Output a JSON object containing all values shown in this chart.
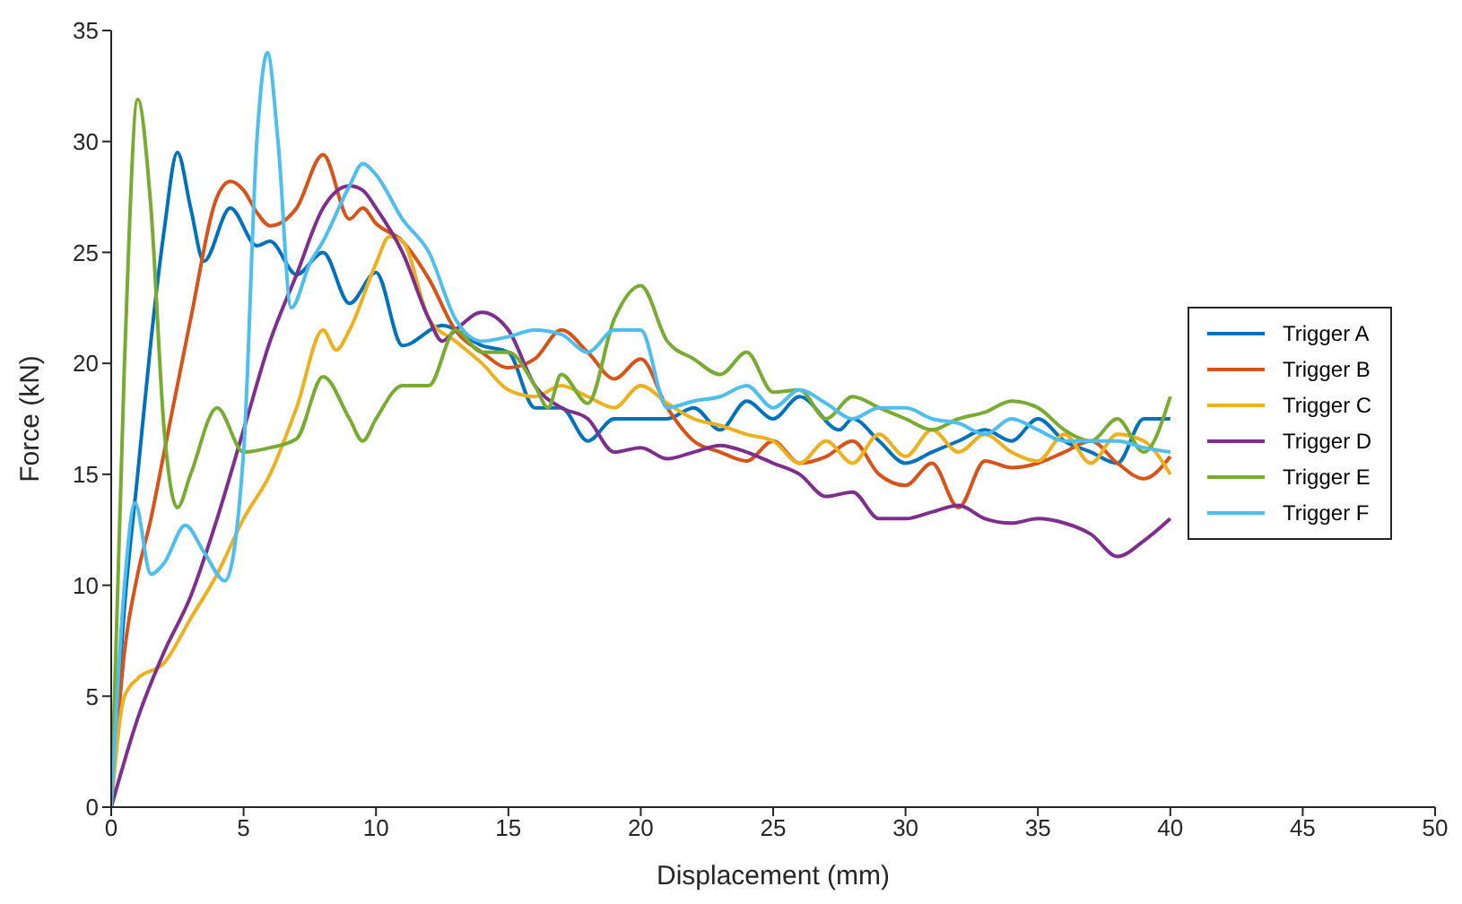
{
  "chart_data": {
    "type": "line",
    "xlabel": "Displacement (mm)",
    "ylabel": "Force (kN)",
    "xlim": [
      0,
      50
    ],
    "xticks": [
      0,
      5,
      10,
      15,
      20,
      25,
      30,
      35,
      40,
      45,
      50
    ],
    "ylim": [
      0,
      35
    ],
    "yticks": [
      0,
      5,
      10,
      15,
      20,
      25,
      30,
      35
    ],
    "grid": false,
    "legend": "right",
    "marker": "none",
    "line_style": "solid",
    "series": [
      {
        "name": "Trigger A",
        "color": "#0072bd",
        "x": [
          0,
          0.5,
          1,
          1.5,
          2,
          2.5,
          3,
          3.5,
          4.5,
          5.5,
          6,
          7,
          8,
          9,
          10,
          11,
          12.5,
          14,
          15,
          16,
          17,
          18,
          19,
          20,
          21,
          22,
          23,
          24,
          25,
          26,
          27.5,
          28,
          29,
          30,
          31,
          32,
          33,
          34,
          35,
          36,
          37,
          38,
          39,
          40
        ],
        "values": [
          0,
          9,
          15,
          21,
          26,
          29.5,
          27,
          24.6,
          27,
          25.3,
          25.5,
          24,
          25,
          22.7,
          24.1,
          20.8,
          21.7,
          20.8,
          20.5,
          18,
          18,
          16.5,
          17.5,
          17.5,
          17.5,
          18,
          17,
          18.3,
          17.5,
          18.5,
          17,
          17.5,
          16.5,
          15.5,
          16,
          16.5,
          17,
          16.5,
          17.5,
          16.5,
          16,
          15.5,
          17.5,
          17.5
        ]
      },
      {
        "name": "Trigger B",
        "color": "#d95319",
        "x": [
          0,
          0.5,
          1,
          1.5,
          2,
          3,
          4,
          4.5,
          5,
          5.5,
          6,
          7,
          8,
          9,
          9.5,
          10,
          11,
          12,
          13,
          14,
          15,
          16,
          17,
          18,
          19,
          20,
          21,
          22,
          23,
          24,
          25,
          26,
          27,
          28,
          29,
          30,
          31,
          32,
          33,
          34,
          35,
          36,
          37,
          38,
          39,
          40
        ],
        "values": [
          0,
          7,
          10.5,
          13,
          16,
          22,
          27.5,
          28.2,
          27.8,
          26.8,
          26.2,
          27,
          29.4,
          26.5,
          27,
          26.3,
          25.5,
          23.8,
          21.5,
          20.5,
          19.8,
          20.2,
          21.5,
          20.5,
          19.3,
          20.2,
          18,
          16.5,
          16,
          15.6,
          16.5,
          15.5,
          15.8,
          16.5,
          15,
          14.5,
          15.5,
          13.5,
          15.6,
          15.3,
          15.5,
          16,
          16.5,
          15.5,
          14.8,
          15.8
        ]
      },
      {
        "name": "Trigger C",
        "color": "#edb120",
        "x": [
          0,
          0.5,
          1,
          2,
          3,
          4,
          5,
          6,
          7,
          8,
          8.5,
          9,
          10,
          10.5,
          11,
          12,
          13,
          14,
          15,
          16,
          17,
          18,
          19,
          20,
          21,
          22,
          23,
          24,
          25,
          26,
          27,
          28,
          29,
          30,
          31,
          32,
          33,
          34,
          35,
          36,
          37,
          38,
          39,
          40
        ],
        "values": [
          0,
          5,
          5.8,
          6.5,
          8.5,
          10.5,
          13,
          15,
          18,
          21.5,
          20.6,
          21.5,
          24.5,
          25.7,
          25.5,
          22,
          21,
          20,
          18.8,
          18.5,
          19,
          18.5,
          18,
          19,
          18.2,
          17.5,
          17.2,
          16.8,
          16.5,
          15.5,
          16.5,
          15.5,
          16.8,
          15.8,
          17,
          16,
          16.8,
          16,
          15.6,
          16.8,
          15.5,
          16.8,
          16.5,
          15
        ]
      },
      {
        "name": "Trigger D",
        "color": "#7e2f8e",
        "x": [
          0,
          1,
          2,
          3,
          4,
          5,
          6,
          7,
          8,
          9,
          9.5,
          10,
          11,
          12,
          12.5,
          13,
          14,
          15,
          16,
          17,
          18,
          19,
          20,
          21,
          22,
          23,
          24,
          25,
          26,
          27,
          28,
          29,
          30,
          31,
          32,
          33,
          34,
          35,
          36,
          37,
          38,
          39,
          40
        ],
        "values": [
          0,
          4,
          7,
          9.5,
          13,
          17,
          21,
          24,
          27,
          28,
          27.8,
          27,
          25,
          22,
          21,
          21.5,
          22.3,
          21.5,
          19,
          18,
          17.5,
          16,
          16.2,
          15.7,
          16,
          16.3,
          16,
          15.5,
          15,
          14,
          14.2,
          13,
          13,
          13.3,
          13.6,
          13,
          12.8,
          13,
          12.8,
          12.3,
          11.3,
          12,
          13
        ]
      },
      {
        "name": "Trigger E",
        "color": "#77ac30",
        "x": [
          0,
          0.5,
          1,
          1.5,
          2,
          2.5,
          3,
          4,
          5,
          6,
          7,
          8,
          9,
          9.5,
          10,
          11,
          12,
          13,
          14,
          15,
          16,
          16.5,
          17,
          18,
          19,
          20,
          21,
          22,
          23,
          24,
          25,
          26,
          27,
          28,
          29,
          30,
          31,
          32,
          33,
          34,
          35,
          36,
          37,
          38,
          39,
          40
        ],
        "values": [
          0,
          20,
          31.9,
          27,
          17,
          13.5,
          15,
          18,
          16,
          16.2,
          16.6,
          19.4,
          17.5,
          16.5,
          17.5,
          19,
          19,
          21.5,
          20.5,
          20.5,
          19,
          18,
          19.5,
          18.2,
          22,
          23.5,
          21,
          20.2,
          19.5,
          20.5,
          18.7,
          18.8,
          17.5,
          18.5,
          18,
          17.5,
          17,
          17.5,
          17.8,
          18.3,
          18,
          17,
          16.5,
          17.5,
          16,
          18.5
        ]
      },
      {
        "name": "Trigger F",
        "color": "#4dbeee",
        "x": [
          0,
          0.5,
          0.9,
          1.5,
          2,
          2.8,
          3.5,
          4.3,
          5,
          5.5,
          5.9,
          6.3,
          6.8,
          7.5,
          8,
          9,
          9.5,
          10,
          11,
          12,
          13,
          14,
          15,
          16,
          17,
          18,
          19,
          20,
          21,
          22,
          23,
          24,
          25,
          26,
          27,
          28,
          29,
          30,
          31,
          32,
          33,
          34,
          35,
          36,
          37,
          38,
          39,
          40
        ],
        "values": [
          0,
          10,
          13.7,
          10.5,
          11,
          12.7,
          11.5,
          10.2,
          16,
          30,
          34,
          30,
          22.5,
          24.5,
          25.5,
          28,
          29,
          28.5,
          26.5,
          25,
          22,
          21,
          21.2,
          21.5,
          21.3,
          20.5,
          21.5,
          21.5,
          18,
          18.3,
          18.5,
          19,
          18,
          18.8,
          18.2,
          17.5,
          18,
          18,
          17.5,
          17.3,
          16.8,
          17.5,
          17,
          16.5,
          16.5,
          16.5,
          16.2,
          16
        ]
      }
    ]
  }
}
